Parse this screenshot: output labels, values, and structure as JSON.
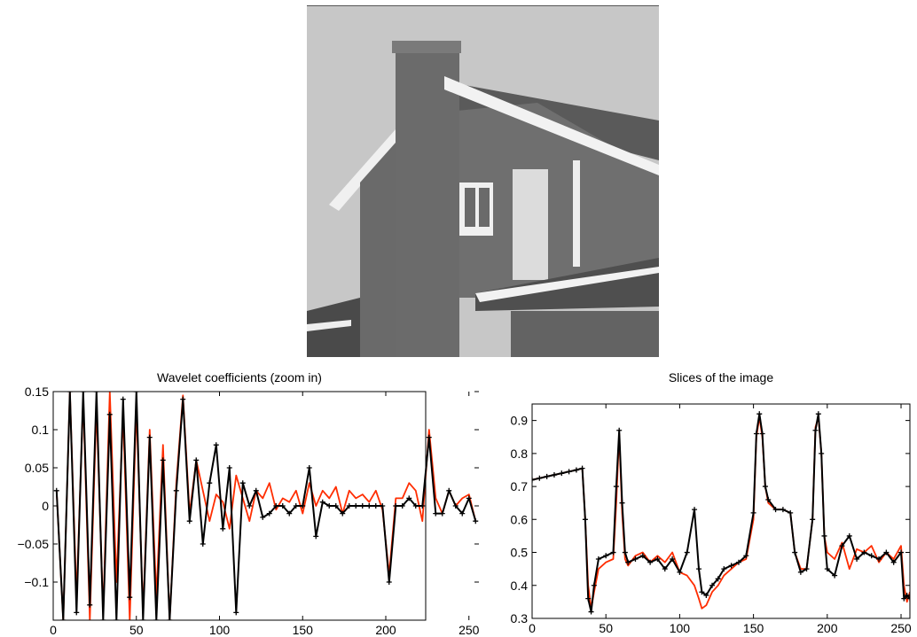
{
  "image": {
    "subject": "house photograph, grayscale"
  },
  "colors": {
    "series_red": "#ff2d00",
    "series_black": "#000000"
  },
  "chart_data": [
    {
      "type": "line",
      "title": "Wavelet coefficients (zoom in)",
      "xlabel": "",
      "ylabel": "",
      "xlim": [
        0,
        256
      ],
      "ylim": [
        -0.15,
        0.15
      ],
      "xticks": [
        "0",
        "50",
        "100",
        "150",
        "200",
        "250"
      ],
      "yticks": [
        "0.15",
        "0.1",
        "0.05",
        "0",
        "−0.05",
        "−0.1"
      ],
      "grid": false,
      "series": [
        {
          "color": "#ff2d00",
          "marker": "none",
          "x": [
            2,
            6,
            10,
            14,
            18,
            22,
            26,
            30,
            34,
            38,
            42,
            46,
            50,
            54,
            58,
            62,
            66,
            70,
            74,
            78,
            82,
            86,
            90,
            94,
            98,
            102,
            106,
            110,
            114,
            118,
            122,
            126,
            130,
            134,
            138,
            142,
            146,
            150,
            154,
            158,
            162,
            166,
            170,
            174,
            178,
            182,
            186,
            190,
            194,
            198,
            202,
            206,
            210,
            214,
            218,
            222,
            226,
            230,
            234,
            238,
            242,
            246,
            250,
            254
          ],
          "y": [
            0.02,
            -0.15,
            0.15,
            -0.12,
            0.14,
            -0.15,
            0.13,
            -0.14,
            0.15,
            -0.1,
            0.12,
            -0.15,
            0.13,
            -0.14,
            0.1,
            -0.12,
            0.08,
            -0.15,
            0.03,
            0.145,
            -0.01,
            0.06,
            0.02,
            -0.02,
            0.015,
            0.005,
            -0.03,
            0.04,
            0.01,
            -0.02,
            0.02,
            0.01,
            0.03,
            -0.005,
            0.01,
            0.005,
            0.02,
            -0.01,
            0.03,
            0.0,
            0.02,
            0.01,
            0.025,
            -0.01,
            0.02,
            0.01,
            0.015,
            0.005,
            0.02,
            -0.005,
            -0.09,
            0.01,
            0.01,
            0.03,
            0.02,
            -0.02,
            0.1,
            0.01,
            -0.01,
            0.02,
            0.0,
            0.01,
            0.015,
            -0.02
          ]
        },
        {
          "color": "#000000",
          "marker": "+",
          "x": [
            2,
            6,
            10,
            14,
            18,
            22,
            26,
            30,
            34,
            38,
            42,
            46,
            50,
            54,
            58,
            62,
            66,
            70,
            74,
            78,
            82,
            86,
            90,
            94,
            98,
            102,
            106,
            110,
            114,
            118,
            122,
            126,
            130,
            134,
            138,
            142,
            146,
            150,
            154,
            158,
            162,
            166,
            170,
            174,
            178,
            182,
            186,
            190,
            194,
            198,
            202,
            206,
            210,
            214,
            218,
            222,
            226,
            230,
            234,
            238,
            242,
            246,
            250,
            254
          ],
          "y": [
            0.02,
            -0.15,
            0.15,
            -0.14,
            0.15,
            -0.13,
            0.15,
            -0.15,
            0.12,
            -0.15,
            0.14,
            -0.12,
            0.15,
            -0.15,
            0.09,
            -0.15,
            0.06,
            -0.15,
            0.02,
            0.14,
            -0.02,
            0.06,
            -0.05,
            0.03,
            0.08,
            -0.03,
            0.05,
            -0.14,
            0.03,
            0.0,
            0.02,
            -0.015,
            -0.01,
            0.0,
            0.0,
            -0.01,
            0.0,
            0.0,
            0.05,
            -0.04,
            0.005,
            0.0,
            0.0,
            -0.01,
            0.0,
            0.0,
            0.0,
            0.0,
            0.0,
            0.0,
            -0.1,
            0.0,
            0.0,
            0.01,
            0.0,
            0.0,
            0.09,
            -0.01,
            -0.01,
            0.02,
            0.0,
            -0.01,
            0.01,
            -0.02
          ]
        }
      ]
    },
    {
      "type": "line",
      "title": "Slices of the image",
      "xlabel": "",
      "ylabel": "",
      "xlim": [
        0,
        256
      ],
      "ylim": [
        0.3,
        0.95
      ],
      "xticks": [
        "0",
        "50",
        "100",
        "150",
        "200",
        "250"
      ],
      "yticks": [
        "0.9",
        "0.8",
        "0.7",
        "0.6",
        "0.5",
        "0.4",
        "0.3"
      ],
      "grid": false,
      "series": [
        {
          "color": "#ff2d00",
          "marker": "none",
          "x": [
            0,
            5,
            10,
            15,
            20,
            25,
            30,
            34,
            36,
            38,
            40,
            42,
            45,
            50,
            55,
            57,
            59,
            61,
            63,
            65,
            70,
            75,
            80,
            85,
            90,
            95,
            100,
            105,
            110,
            113,
            115,
            118,
            122,
            126,
            130,
            135,
            140,
            145,
            150,
            152,
            154,
            156,
            158,
            160,
            165,
            170,
            175,
            178,
            182,
            186,
            190,
            192,
            194,
            196,
            198,
            200,
            205,
            210,
            215,
            220,
            225,
            230,
            235,
            240,
            245,
            250,
            252,
            254,
            256
          ],
          "y": [
            0.72,
            0.725,
            0.73,
            0.735,
            0.74,
            0.745,
            0.75,
            0.755,
            0.6,
            0.4,
            0.33,
            0.38,
            0.45,
            0.47,
            0.48,
            0.65,
            0.86,
            0.62,
            0.48,
            0.46,
            0.49,
            0.5,
            0.47,
            0.49,
            0.47,
            0.5,
            0.44,
            0.43,
            0.4,
            0.36,
            0.33,
            0.34,
            0.38,
            0.4,
            0.43,
            0.45,
            0.47,
            0.48,
            0.6,
            0.85,
            0.91,
            0.85,
            0.7,
            0.65,
            0.63,
            0.63,
            0.62,
            0.5,
            0.45,
            0.45,
            0.6,
            0.88,
            0.91,
            0.8,
            0.55,
            0.5,
            0.48,
            0.53,
            0.45,
            0.51,
            0.5,
            0.52,
            0.47,
            0.5,
            0.48,
            0.52,
            0.4,
            0.35,
            0.38
          ]
        },
        {
          "color": "#000000",
          "marker": "+",
          "x": [
            0,
            5,
            10,
            15,
            20,
            25,
            30,
            34,
            36,
            38,
            40,
            42,
            45,
            50,
            55,
            57,
            59,
            61,
            63,
            65,
            70,
            75,
            80,
            85,
            90,
            95,
            100,
            105,
            110,
            113,
            115,
            118,
            122,
            126,
            130,
            135,
            140,
            145,
            150,
            152,
            154,
            156,
            158,
            160,
            165,
            170,
            175,
            178,
            182,
            186,
            190,
            192,
            194,
            196,
            198,
            200,
            205,
            210,
            215,
            220,
            225,
            230,
            235,
            240,
            245,
            250,
            252,
            254,
            256
          ],
          "y": [
            0.72,
            0.725,
            0.73,
            0.735,
            0.74,
            0.745,
            0.75,
            0.755,
            0.6,
            0.36,
            0.32,
            0.4,
            0.48,
            0.49,
            0.5,
            0.7,
            0.87,
            0.65,
            0.5,
            0.47,
            0.48,
            0.49,
            0.47,
            0.48,
            0.45,
            0.48,
            0.44,
            0.5,
            0.63,
            0.45,
            0.38,
            0.37,
            0.4,
            0.42,
            0.45,
            0.46,
            0.47,
            0.49,
            0.62,
            0.86,
            0.92,
            0.86,
            0.7,
            0.66,
            0.63,
            0.63,
            0.62,
            0.5,
            0.44,
            0.45,
            0.6,
            0.87,
            0.92,
            0.8,
            0.55,
            0.45,
            0.43,
            0.52,
            0.55,
            0.48,
            0.5,
            0.49,
            0.48,
            0.5,
            0.47,
            0.5,
            0.36,
            0.37,
            0.36
          ]
        }
      ]
    }
  ]
}
